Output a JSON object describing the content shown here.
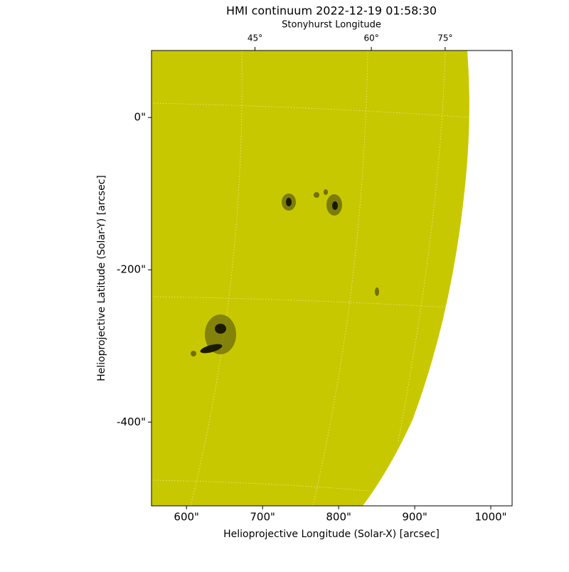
{
  "chart_data": {
    "type": "image",
    "title": "HMI continuum 2022-12-19 01:58:30",
    "x2label": "Stonyhurst Longitude",
    "xlabel": "Helioprojective Longitude (Solar-X) [arcsec]",
    "ylabel": "Helioprojective Latitude (Solar-Y) [arcsec]",
    "xlim": [
      554,
      1028
    ],
    "ylim": [
      -510,
      88
    ],
    "xticks": [
      {
        "value": 600,
        "label": "600\""
      },
      {
        "value": 700,
        "label": "700\""
      },
      {
        "value": 800,
        "label": "800\""
      },
      {
        "value": 900,
        "label": "900\""
      },
      {
        "value": 1000,
        "label": "1000\""
      }
    ],
    "yticks": [
      {
        "value": 0,
        "label": "0\""
      },
      {
        "value": -200,
        "label": "-200\""
      },
      {
        "value": -400,
        "label": "-400\""
      }
    ],
    "x2ticks": [
      {
        "value": 690,
        "label": "45°"
      },
      {
        "value": 843,
        "label": "60°"
      },
      {
        "value": 940,
        "label": "75°"
      }
    ],
    "color": "#c8c800"
  }
}
